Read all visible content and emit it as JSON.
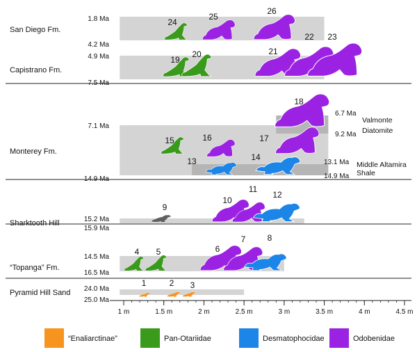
{
  "colors": {
    "Enaliarctinae": "#f7941d",
    "Pan-Otariidae": "#3a9a1c",
    "Desmatophocidae": "#1b85e8",
    "Odobenidae": "#9b22e2",
    "Unassigned": "#5f5f5f",
    "range_bar": "#d4d4d4",
    "sub_range_bar": "#b5b5b5"
  },
  "legend": [
    {
      "key": "Enaliarctinae",
      "label": "“Enaliarctinae”"
    },
    {
      "key": "Pan-Otariidae",
      "label": "Pan-Otariidae"
    },
    {
      "key": "Desmatophocidae",
      "label": "Desmatophocidae"
    },
    {
      "key": "Odobenidae",
      "label": "Odobenidae"
    }
  ],
  "axis": {
    "unit": "m",
    "min": 0.95,
    "max": 4.6,
    "ticks": [
      {
        "value": 1.0,
        "label": "1 m"
      },
      {
        "value": 1.5,
        "label": "1.5 m"
      },
      {
        "value": 2.0,
        "label": "2 m"
      },
      {
        "value": 2.5,
        "label": "2.5 m"
      },
      {
        "value": 3.0,
        "label": "3 m"
      },
      {
        "value": 3.5,
        "label": "3.5 m"
      },
      {
        "value": 4.0,
        "label": "4 m"
      },
      {
        "value": 4.5,
        "label": "4.5 m"
      }
    ]
  },
  "formations": [
    {
      "name": "San Diego Fm.",
      "age_top": "1.8 Ma",
      "age_bottom": "4.2 Ma",
      "range_start": 0.95,
      "range_end": 3.5,
      "taxa": [
        {
          "num": "24",
          "group": "Pan-Otariidae",
          "size_m": 1.75
        },
        {
          "num": "25",
          "group": "Odobenidae",
          "size_m": 2.3
        },
        {
          "num": "26",
          "group": "Odobenidae",
          "size_m": 3.25
        }
      ]
    },
    {
      "name": "Capistrano Fm.",
      "age_top": "4.9 Ma",
      "age_bottom": "7.5 Ma",
      "range_start": 0.95,
      "range_end": 3.5,
      "taxa": [
        {
          "num": "19",
          "group": "Pan-Otariidae",
          "size_m": 1.65
        },
        {
          "num": "20",
          "group": "Pan-Otariidae",
          "size_m": 1.9
        },
        {
          "num": "21",
          "group": "Odobenidae",
          "size_m": 3.1
        },
        {
          "num": "22",
          "group": "Odobenidae",
          "size_m": 3.55
        },
        {
          "num": "23",
          "group": "Odobenidae",
          "size_m": 3.85
        }
      ]
    },
    {
      "name": "Monterey Fm.",
      "age_top": "7.1 Ma",
      "age_bottom": "14.9 Ma",
      "range_start": 0.95,
      "range_end": 3.55,
      "sub_units": [
        {
          "name": "Valmonte Diatomite",
          "age_top": "6.7 Ma",
          "age_bottom": "9.2 Ma",
          "range_start": 2.9,
          "range_end": 3.55
        },
        {
          "name": "Middle Altamira Shale",
          "age_top": "13.1 Ma",
          "age_bottom": "14.9 Ma",
          "range_start": 1.85,
          "range_end": 3.55
        }
      ],
      "taxa": [
        {
          "num": "15",
          "group": "Pan-Otariidae",
          "size_m": 1.85
        },
        {
          "num": "16",
          "group": "Odobenidae",
          "size_m": 2.25
        },
        {
          "num": "13",
          "group": "Desmatophocidae",
          "size_m": 2.35
        },
        {
          "num": "14",
          "group": "Desmatophocidae",
          "size_m": 3.3
        },
        {
          "num": "17",
          "group": "Odobenidae",
          "size_m": 3.4
        },
        {
          "num": "18",
          "group": "Odobenidae",
          "size_m": 3.6
        }
      ]
    },
    {
      "name": "Sharktooth Hill",
      "age_top": "15.2 Ma",
      "age_bottom": "15.9 Ma",
      "range_start": 0.95,
      "range_end": 3.25,
      "taxa": [
        {
          "num": "9",
          "group": "Unassigned",
          "size_m": 1.7
        },
        {
          "num": "10",
          "group": "Odobenidae",
          "size_m": 2.5
        },
        {
          "num": "11",
          "group": "Odobenidae",
          "size_m": 2.7
        },
        {
          "num": "12",
          "group": "Desmatophocidae",
          "size_m": 3.2
        }
      ]
    },
    {
      "name": "“Topanga” Fm.",
      "age_top": "14.5 Ma",
      "age_bottom": "16.5 Ma",
      "range_start": 0.95,
      "range_end": 3.0,
      "taxa": [
        {
          "num": "4",
          "group": "Pan-Otariidae",
          "size_m": 1.3
        },
        {
          "num": "5",
          "group": "Pan-Otariidae",
          "size_m": 1.55
        },
        {
          "num": "6",
          "group": "Odobenidae",
          "size_m": 2.45
        },
        {
          "num": "7",
          "group": "Odobenidae",
          "size_m": 2.65
        },
        {
          "num": "8",
          "group": "Desmatophocidae",
          "size_m": 2.95
        }
      ]
    },
    {
      "name": "Pyramid Hill Sand",
      "age_top": "24.0 Ma",
      "age_bottom": "25.0 Ma",
      "range_start": 0.95,
      "range_end": 2.5,
      "taxa": [
        {
          "num": "1",
          "group": "Enaliarctinae",
          "size_m": 1.35
        },
        {
          "num": "2",
          "group": "Enaliarctinae",
          "size_m": 1.75
        },
        {
          "num": "3",
          "group": "Enaliarctinae",
          "size_m": 1.95
        }
      ]
    }
  ]
}
